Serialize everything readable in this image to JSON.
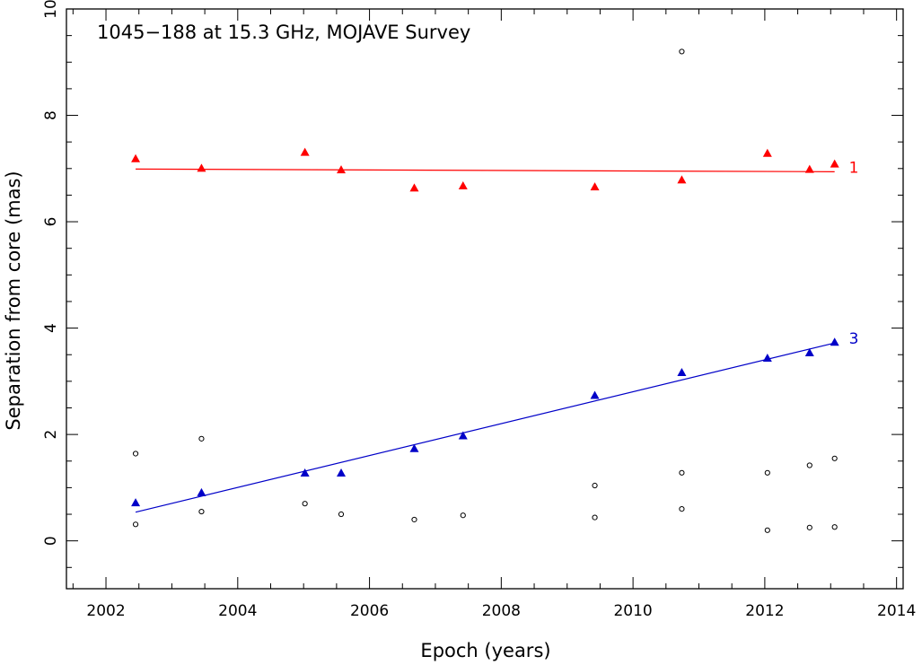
{
  "chart_data": {
    "type": "scatter",
    "title": "1045−188 at 15.3 GHz, MOJAVE Survey",
    "xlabel": "Epoch (years)",
    "ylabel": "Separation from core (mas)",
    "xlim": [
      2001.4,
      2014.1
    ],
    "ylim": [
      -0.9,
      10.0
    ],
    "xticks": [
      2002,
      2004,
      2006,
      2008,
      2010,
      2012,
      2014
    ],
    "yticks": [
      0,
      2,
      4,
      6,
      8,
      10
    ],
    "grid": false,
    "series": [
      {
        "name": "1",
        "marker": "triangle",
        "color": "#ff0000",
        "x": [
          2002.45,
          2003.45,
          2005.02,
          2005.57,
          2006.68,
          2007.42,
          2009.42,
          2010.74,
          2012.04,
          2012.68,
          2013.06
        ],
        "y": [
          7.18,
          7.0,
          7.3,
          6.97,
          6.63,
          6.67,
          6.65,
          6.78,
          7.28,
          6.98,
          7.08
        ],
        "fit": {
          "x": [
            2002.45,
            2013.06
          ],
          "y": [
            6.99,
            6.94
          ]
        }
      },
      {
        "name": "3",
        "marker": "triangle",
        "color": "#0000c8",
        "x": [
          2002.45,
          2003.45,
          2005.02,
          2005.57,
          2006.68,
          2007.42,
          2009.42,
          2010.74,
          2012.04,
          2012.68,
          2013.06
        ],
        "y": [
          0.71,
          0.9,
          1.27,
          1.27,
          1.73,
          1.97,
          2.73,
          3.16,
          3.43,
          3.53,
          3.73
        ],
        "fit": {
          "x": [
            2002.45,
            2013.06
          ],
          "y": [
            0.54,
            3.72
          ]
        }
      },
      {
        "marker": "circle",
        "color": "#000000",
        "x": [
          2002.45,
          2002.45,
          2003.45,
          2003.45,
          2005.02,
          2005.57,
          2006.68,
          2007.42,
          2009.42,
          2009.42,
          2010.74,
          2010.74,
          2010.74,
          2012.04,
          2012.04,
          2012.68,
          2012.68,
          2013.06,
          2013.06
        ],
        "y": [
          1.64,
          0.31,
          1.92,
          0.55,
          0.7,
          0.5,
          0.4,
          0.48,
          1.04,
          0.44,
          9.2,
          1.28,
          0.6,
          1.28,
          0.2,
          1.42,
          0.25,
          1.55,
          0.26
        ]
      }
    ]
  }
}
